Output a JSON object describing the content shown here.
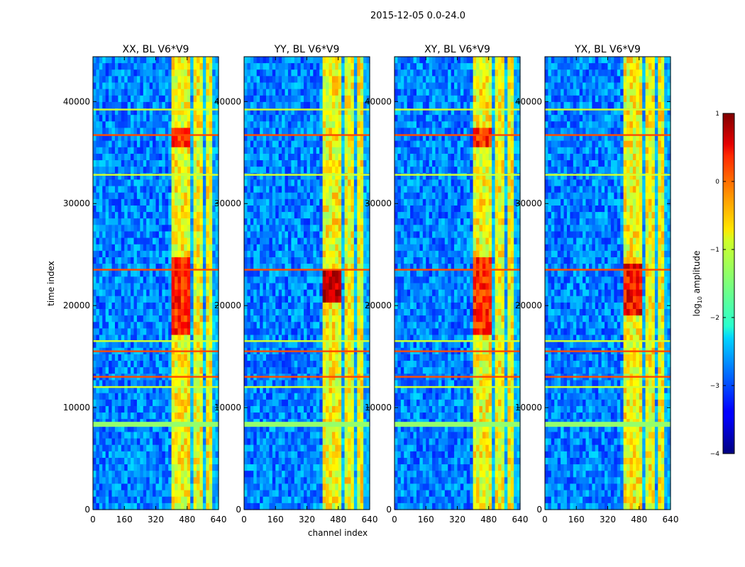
{
  "chart_data": {
    "type": "heatmap",
    "suptitle": "2015-12-05 0.0-24.0",
    "xlabel": "channel index",
    "ylabel": "time index",
    "xlim": [
      0,
      640
    ],
    "ylim": [
      0,
      44400
    ],
    "xticks": [
      0,
      160,
      320,
      480,
      640
    ],
    "yticks": [
      0,
      10000,
      20000,
      30000,
      40000
    ],
    "x_tick_labels": [
      "0",
      "160",
      "320",
      "480",
      "640"
    ],
    "y_tick_labels": [
      "0",
      "10000",
      "20000",
      "30000",
      "40000"
    ],
    "panels": [
      {
        "title": "XX, BL V6*V9",
        "polarization": "XX"
      },
      {
        "title": "YY, BL V6*V9",
        "polarization": "YY"
      },
      {
        "title": "XY, BL V6*V9",
        "polarization": "XY"
      },
      {
        "title": "YX, BL V6*V9",
        "polarization": "YX"
      }
    ],
    "colorbar": {
      "label": "log10 amplitude",
      "label_main": "log",
      "label_sub": "10",
      "label_rest": " amplitude",
      "vmin": -4,
      "vmax": 1,
      "ticks": [
        1,
        0,
        -1,
        -2,
        -3,
        -4
      ],
      "tick_labels": [
        "1",
        "0",
        "−1",
        "−2",
        "−3",
        "−4"
      ],
      "colormap": "jet"
    },
    "rfi_channel_bands": [
      [
        400,
        500
      ],
      [
        510,
        560
      ],
      [
        575,
        615
      ]
    ],
    "bright_horizontal_time_rows": [
      8500,
      23500,
      32800,
      36700,
      39200,
      15500,
      16500,
      13000,
      12000
    ]
  },
  "colors": {
    "background": "#ffffff",
    "axis": "#000000",
    "jet_low": "#00007f",
    "jet_mid": "#7fff7f",
    "jet_high": "#7f0000"
  }
}
